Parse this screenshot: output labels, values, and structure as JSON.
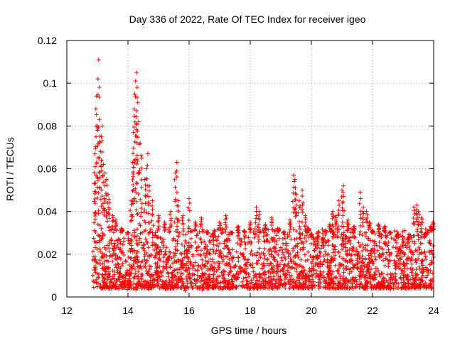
{
  "chart_data": {
    "type": "scatter",
    "title": "Day 336 of 2022, Rate Of TEC Index for receiver igeo",
    "xlabel": "GPS time / hours",
    "ylabel": "ROTI / TECUs",
    "xlim": [
      12,
      24
    ],
    "ylim": [
      0,
      0.12
    ],
    "x_ticks": [
      12,
      14,
      16,
      18,
      20,
      22,
      24
    ],
    "x_tick_labels": [
      "12",
      "14",
      "16",
      "18",
      "20",
      "22",
      "24"
    ],
    "y_ticks": [
      0,
      0.02,
      0.04,
      0.06,
      0.08,
      0.1,
      0.12
    ],
    "y_tick_labels": [
      "0",
      "0.02",
      "0.04",
      "0.06",
      "0.08",
      "0.1",
      "0.12"
    ],
    "grid": true,
    "marker": "+",
    "color": "#ff0000",
    "series": [
      {
        "name": "ROTI",
        "points": [
          [
            12.9,
            0.053
          ],
          [
            12.92,
            0.067
          ],
          [
            12.95,
            0.088
          ],
          [
            12.97,
            0.094
          ],
          [
            13.0,
            0.078
          ],
          [
            13.02,
            0.102
          ],
          [
            13.04,
            0.111
          ],
          [
            13.06,
            0.083
          ],
          [
            13.1,
            0.068
          ],
          [
            13.13,
            0.075
          ],
          [
            13.16,
            0.08
          ],
          [
            13.2,
            0.062
          ],
          [
            13.25,
            0.058
          ],
          [
            13.3,
            0.055
          ],
          [
            13.35,
            0.048
          ],
          [
            13.4,
            0.044
          ],
          [
            13.5,
            0.038
          ],
          [
            13.6,
            0.036
          ],
          [
            13.8,
            0.032
          ],
          [
            14.0,
            0.03
          ],
          [
            14.1,
            0.045
          ],
          [
            14.15,
            0.063
          ],
          [
            14.18,
            0.077
          ],
          [
            14.2,
            0.088
          ],
          [
            14.22,
            0.095
          ],
          [
            14.25,
            0.101
          ],
          [
            14.28,
            0.105
          ],
          [
            14.3,
            0.098
          ],
          [
            14.32,
            0.091
          ],
          [
            14.35,
            0.082
          ],
          [
            14.4,
            0.072
          ],
          [
            14.45,
            0.065
          ],
          [
            14.55,
            0.055
          ],
          [
            14.6,
            0.06
          ],
          [
            14.65,
            0.067
          ],
          [
            14.7,
            0.052
          ],
          [
            14.8,
            0.045
          ],
          [
            15.0,
            0.038
          ],
          [
            15.2,
            0.035
          ],
          [
            15.4,
            0.04
          ],
          [
            15.55,
            0.058
          ],
          [
            15.6,
            0.063
          ],
          [
            15.65,
            0.045
          ],
          [
            15.8,
            0.038
          ],
          [
            16.0,
            0.046
          ],
          [
            16.2,
            0.035
          ],
          [
            16.4,
            0.037
          ],
          [
            16.6,
            0.03
          ],
          [
            16.8,
            0.028
          ],
          [
            17.0,
            0.035
          ],
          [
            17.2,
            0.038
          ],
          [
            17.4,
            0.03
          ],
          [
            17.6,
            0.033
          ],
          [
            17.8,
            0.031
          ],
          [
            18.0,
            0.035
          ],
          [
            18.2,
            0.042
          ],
          [
            18.3,
            0.04
          ],
          [
            18.5,
            0.034
          ],
          [
            18.7,
            0.037
          ],
          [
            18.9,
            0.032
          ],
          [
            19.1,
            0.03
          ],
          [
            19.3,
            0.036
          ],
          [
            19.42,
            0.057
          ],
          [
            19.46,
            0.055
          ],
          [
            19.5,
            0.048
          ],
          [
            19.6,
            0.045
          ],
          [
            19.7,
            0.05
          ],
          [
            19.8,
            0.038
          ],
          [
            19.9,
            0.032
          ],
          [
            20.0,
            0.028
          ],
          [
            20.2,
            0.025
          ],
          [
            20.4,
            0.024
          ],
          [
            20.6,
            0.034
          ],
          [
            20.7,
            0.04
          ],
          [
            20.8,
            0.038
          ],
          [
            20.9,
            0.045
          ],
          [
            21.0,
            0.05
          ],
          [
            21.05,
            0.052
          ],
          [
            21.2,
            0.036
          ],
          [
            21.4,
            0.033
          ],
          [
            21.6,
            0.049
          ],
          [
            21.7,
            0.042
          ],
          [
            21.8,
            0.04
          ],
          [
            21.9,
            0.035
          ],
          [
            22.0,
            0.031
          ],
          [
            22.2,
            0.034
          ],
          [
            22.4,
            0.033
          ],
          [
            22.6,
            0.03
          ],
          [
            22.8,
            0.028
          ],
          [
            23.0,
            0.024
          ],
          [
            23.2,
            0.027
          ],
          [
            23.35,
            0.042
          ],
          [
            23.45,
            0.043
          ],
          [
            23.5,
            0.04
          ],
          [
            23.6,
            0.037
          ],
          [
            23.7,
            0.028
          ],
          [
            23.8,
            0.03
          ],
          [
            23.9,
            0.033
          ],
          [
            23.98,
            0.035
          ]
        ]
      }
    ],
    "base_band": {
      "description": "dense cluster of ROTI samples between roughly 0.005 and 0.03 TECUs from 12.9 to 24 h",
      "x_range": [
        12.85,
        24.0
      ],
      "y_range": [
        0.004,
        0.032
      ],
      "min_value": 0.003
    }
  }
}
